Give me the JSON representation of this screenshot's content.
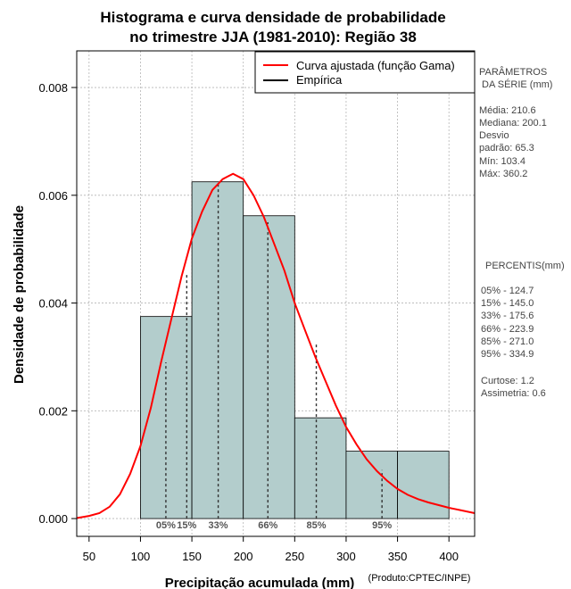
{
  "chart_data": {
    "type": "histogram",
    "title": [
      "Histograma e curva densidade de probabilidade",
      "no trimestre JJA (1981-2010): Região 38"
    ],
    "xlabel": "Precipitação acumulada (mm)",
    "ylabel": "Densidade de probabilidade",
    "credit": "(Produto:CPTEC/INPE)",
    "xlim": [
      38,
      425
    ],
    "ylim": [
      -0.00033,
      0.00868
    ],
    "x_ticks": [
      50,
      100,
      150,
      200,
      250,
      300,
      350,
      400
    ],
    "y_ticks": [
      0.0,
      0.002,
      0.004,
      0.006,
      0.008
    ],
    "y_tick_labels": [
      "0.000",
      "0.002",
      "0.004",
      "0.006",
      "0.008"
    ],
    "bins": [
      {
        "start": 100,
        "end": 150,
        "density": 0.00375
      },
      {
        "start": 150,
        "end": 200,
        "density": 0.00625
      },
      {
        "start": 200,
        "end": 250,
        "density": 0.00562
      },
      {
        "start": 250,
        "end": 300,
        "density": 0.00187
      },
      {
        "start": 300,
        "end": 350,
        "density": 0.00125
      },
      {
        "start": 350,
        "end": 400,
        "density": 0.00125
      }
    ],
    "bar_color": "#b3cdcc",
    "curve": {
      "name": "Curva ajustada (função Gama)",
      "color": "#ff0000",
      "mean": 210.6,
      "sd": 65.3,
      "x": [
        38,
        50,
        60,
        70,
        80,
        90,
        100,
        110,
        120,
        130,
        140,
        150,
        160,
        170,
        180,
        190,
        200,
        210,
        220,
        230,
        240,
        250,
        260,
        270,
        280,
        290,
        300,
        310,
        320,
        330,
        340,
        350,
        360,
        370,
        380,
        390,
        400,
        410,
        425
      ],
      "y": [
        1e-05,
        5e-05,
        0.0001,
        0.00022,
        0.00045,
        0.00083,
        0.00135,
        0.00205,
        0.0029,
        0.0037,
        0.0045,
        0.0052,
        0.0057,
        0.0061,
        0.0063,
        0.0064,
        0.0063,
        0.006,
        0.0056,
        0.0051,
        0.0046,
        0.004,
        0.0035,
        0.003,
        0.00255,
        0.0021,
        0.0017,
        0.00138,
        0.0011,
        0.00088,
        0.0007,
        0.00055,
        0.00044,
        0.00036,
        0.0003,
        0.00025,
        0.0002,
        0.00016,
        0.0001
      ]
    },
    "empirical": {
      "name": "Empírica",
      "color": "#000000"
    },
    "percentiles": [
      {
        "label": "05%",
        "value": 124.7,
        "density": 0.0029
      },
      {
        "label": "15%",
        "value": 145.0,
        "density": 0.00452
      },
      {
        "label": "33%",
        "value": 175.6,
        "density": 0.00625
      },
      {
        "label": "66%",
        "value": 223.9,
        "density": 0.0055
      },
      {
        "label": "85%",
        "value": 271.0,
        "density": 0.00325
      },
      {
        "label": "95%",
        "value": 334.9,
        "density": 0.0009
      }
    ],
    "legend_position": "top-right"
  },
  "side_panel": {
    "params_heading": [
      "PARÂMETROS",
      "DA SÉRIE (mm)"
    ],
    "params": [
      "Média:  210.6",
      "Mediana:  200.1",
      "Desvio",
      "padrão:  65.3",
      "Mín:  103.4",
      "Máx:  360.2"
    ],
    "percentis_heading": "PERCENTIS(mm)",
    "percentis": [
      "05% -  124.7",
      "15% -  145.0",
      "33% -  175.6",
      "66% -  223.9",
      "85% -  271.0",
      "95% -  334.9"
    ],
    "stats": [
      "Curtose:  1.2",
      "Assimetria:  0.6"
    ]
  }
}
